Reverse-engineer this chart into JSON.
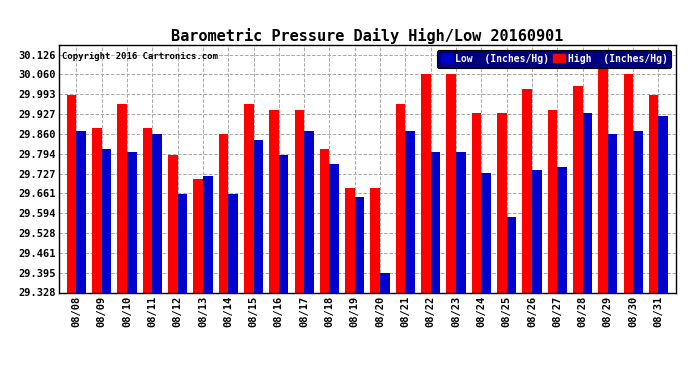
{
  "title": "Barometric Pressure Daily High/Low 20160901",
  "copyright": "Copyright 2016 Cartronics.com",
  "legend_low": "Low  (Inches/Hg)",
  "legend_high": "High  (Inches/Hg)",
  "dates": [
    "08/08",
    "08/09",
    "08/10",
    "08/11",
    "08/12",
    "08/13",
    "08/14",
    "08/15",
    "08/16",
    "08/17",
    "08/18",
    "08/19",
    "08/20",
    "08/21",
    "08/22",
    "08/23",
    "08/24",
    "08/25",
    "08/26",
    "08/27",
    "08/28",
    "08/29",
    "08/30",
    "08/31"
  ],
  "low_values": [
    29.87,
    29.81,
    29.8,
    29.86,
    29.66,
    29.72,
    29.66,
    29.84,
    29.79,
    29.87,
    29.76,
    29.65,
    29.395,
    29.87,
    29.8,
    29.8,
    29.73,
    29.58,
    29.74,
    29.75,
    29.93,
    29.86,
    29.87,
    29.92
  ],
  "high_values": [
    29.99,
    29.88,
    29.96,
    29.88,
    29.79,
    29.71,
    29.86,
    29.96,
    29.94,
    29.94,
    29.81,
    29.68,
    29.68,
    29.96,
    30.06,
    30.06,
    29.93,
    29.93,
    30.01,
    29.94,
    30.02,
    30.12,
    30.06,
    29.99
  ],
  "ylim_min": 29.328,
  "ylim_max": 30.159,
  "yticks": [
    29.328,
    29.395,
    29.461,
    29.528,
    29.594,
    29.661,
    29.727,
    29.794,
    29.86,
    29.927,
    29.993,
    30.06,
    30.126
  ],
  "low_color": "#0000cc",
  "high_color": "#ff0000",
  "bg_color": "#ffffff",
  "grid_color": "#aaaaaa",
  "title_fontsize": 11,
  "tick_fontsize": 7.5,
  "bar_width": 0.38
}
